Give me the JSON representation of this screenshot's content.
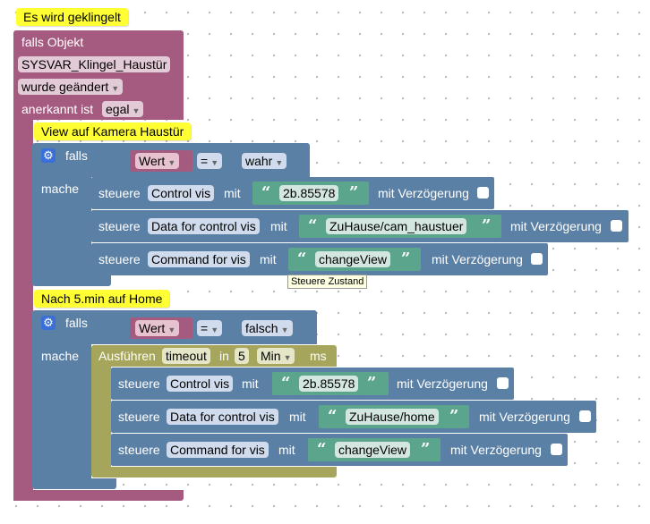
{
  "trigger": {
    "comment": "Es wird geklingelt",
    "if_object_label": "falls Objekt",
    "object_id": "SYSVAR_Klingel_Haustür",
    "changed_label": "wurde geändert",
    "ack_label": "anerkannt ist",
    "ack_value": "egal"
  },
  "section1": {
    "comment": "View auf Kamera Haustür",
    "if_label": "falls",
    "do_label": "mache",
    "condition": {
      "left": "Wert",
      "op": "=",
      "right": "wahr"
    },
    "actions": [
      {
        "verb": "steuere",
        "target": "Control vis",
        "with": "mit",
        "value": "2b.85578",
        "delay_label": "mit Verzögerung"
      },
      {
        "verb": "steuere",
        "target": "Data for control vis",
        "with": "mit",
        "value": "ZuHause/cam_haustuer",
        "delay_label": "mit Verzögerung"
      },
      {
        "verb": "steuere",
        "target": "Command for vis",
        "with": "mit",
        "value": "changeView",
        "delay_label": "mit Verzögerung"
      }
    ],
    "tooltip": "Steuere Zustand"
  },
  "section2": {
    "comment": "Nach 5.min auf Home",
    "if_label": "falls",
    "do_label": "mache",
    "condition": {
      "left": "Wert",
      "op": "=",
      "right": "falsch"
    },
    "timeout": {
      "run_label": "Ausführen",
      "name": "timeout",
      "in_label": "in",
      "amount": "5",
      "unit": "Min",
      "ms_label": "ms"
    },
    "actions": [
      {
        "verb": "steuere",
        "target": "Control vis",
        "with": "mit",
        "value": "2b.85578",
        "delay_label": "mit Verzögerung"
      },
      {
        "verb": "steuere",
        "target": "Data for control vis",
        "with": "mit",
        "value": "ZuHause/home",
        "delay_label": "mit Verzögerung"
      },
      {
        "verb": "steuere",
        "target": "Command for vis",
        "with": "mit",
        "value": "changeView",
        "delay_label": "mit Verzögerung"
      }
    ]
  },
  "colors": {
    "event": "#a55b80",
    "control": "#5b80a5",
    "timeout": "#a5a55b",
    "string": "#5ba58c",
    "comment": "#ffff33"
  },
  "icons": [
    "gear-icon",
    "dropdown-arrow-icon",
    "checkbox"
  ]
}
